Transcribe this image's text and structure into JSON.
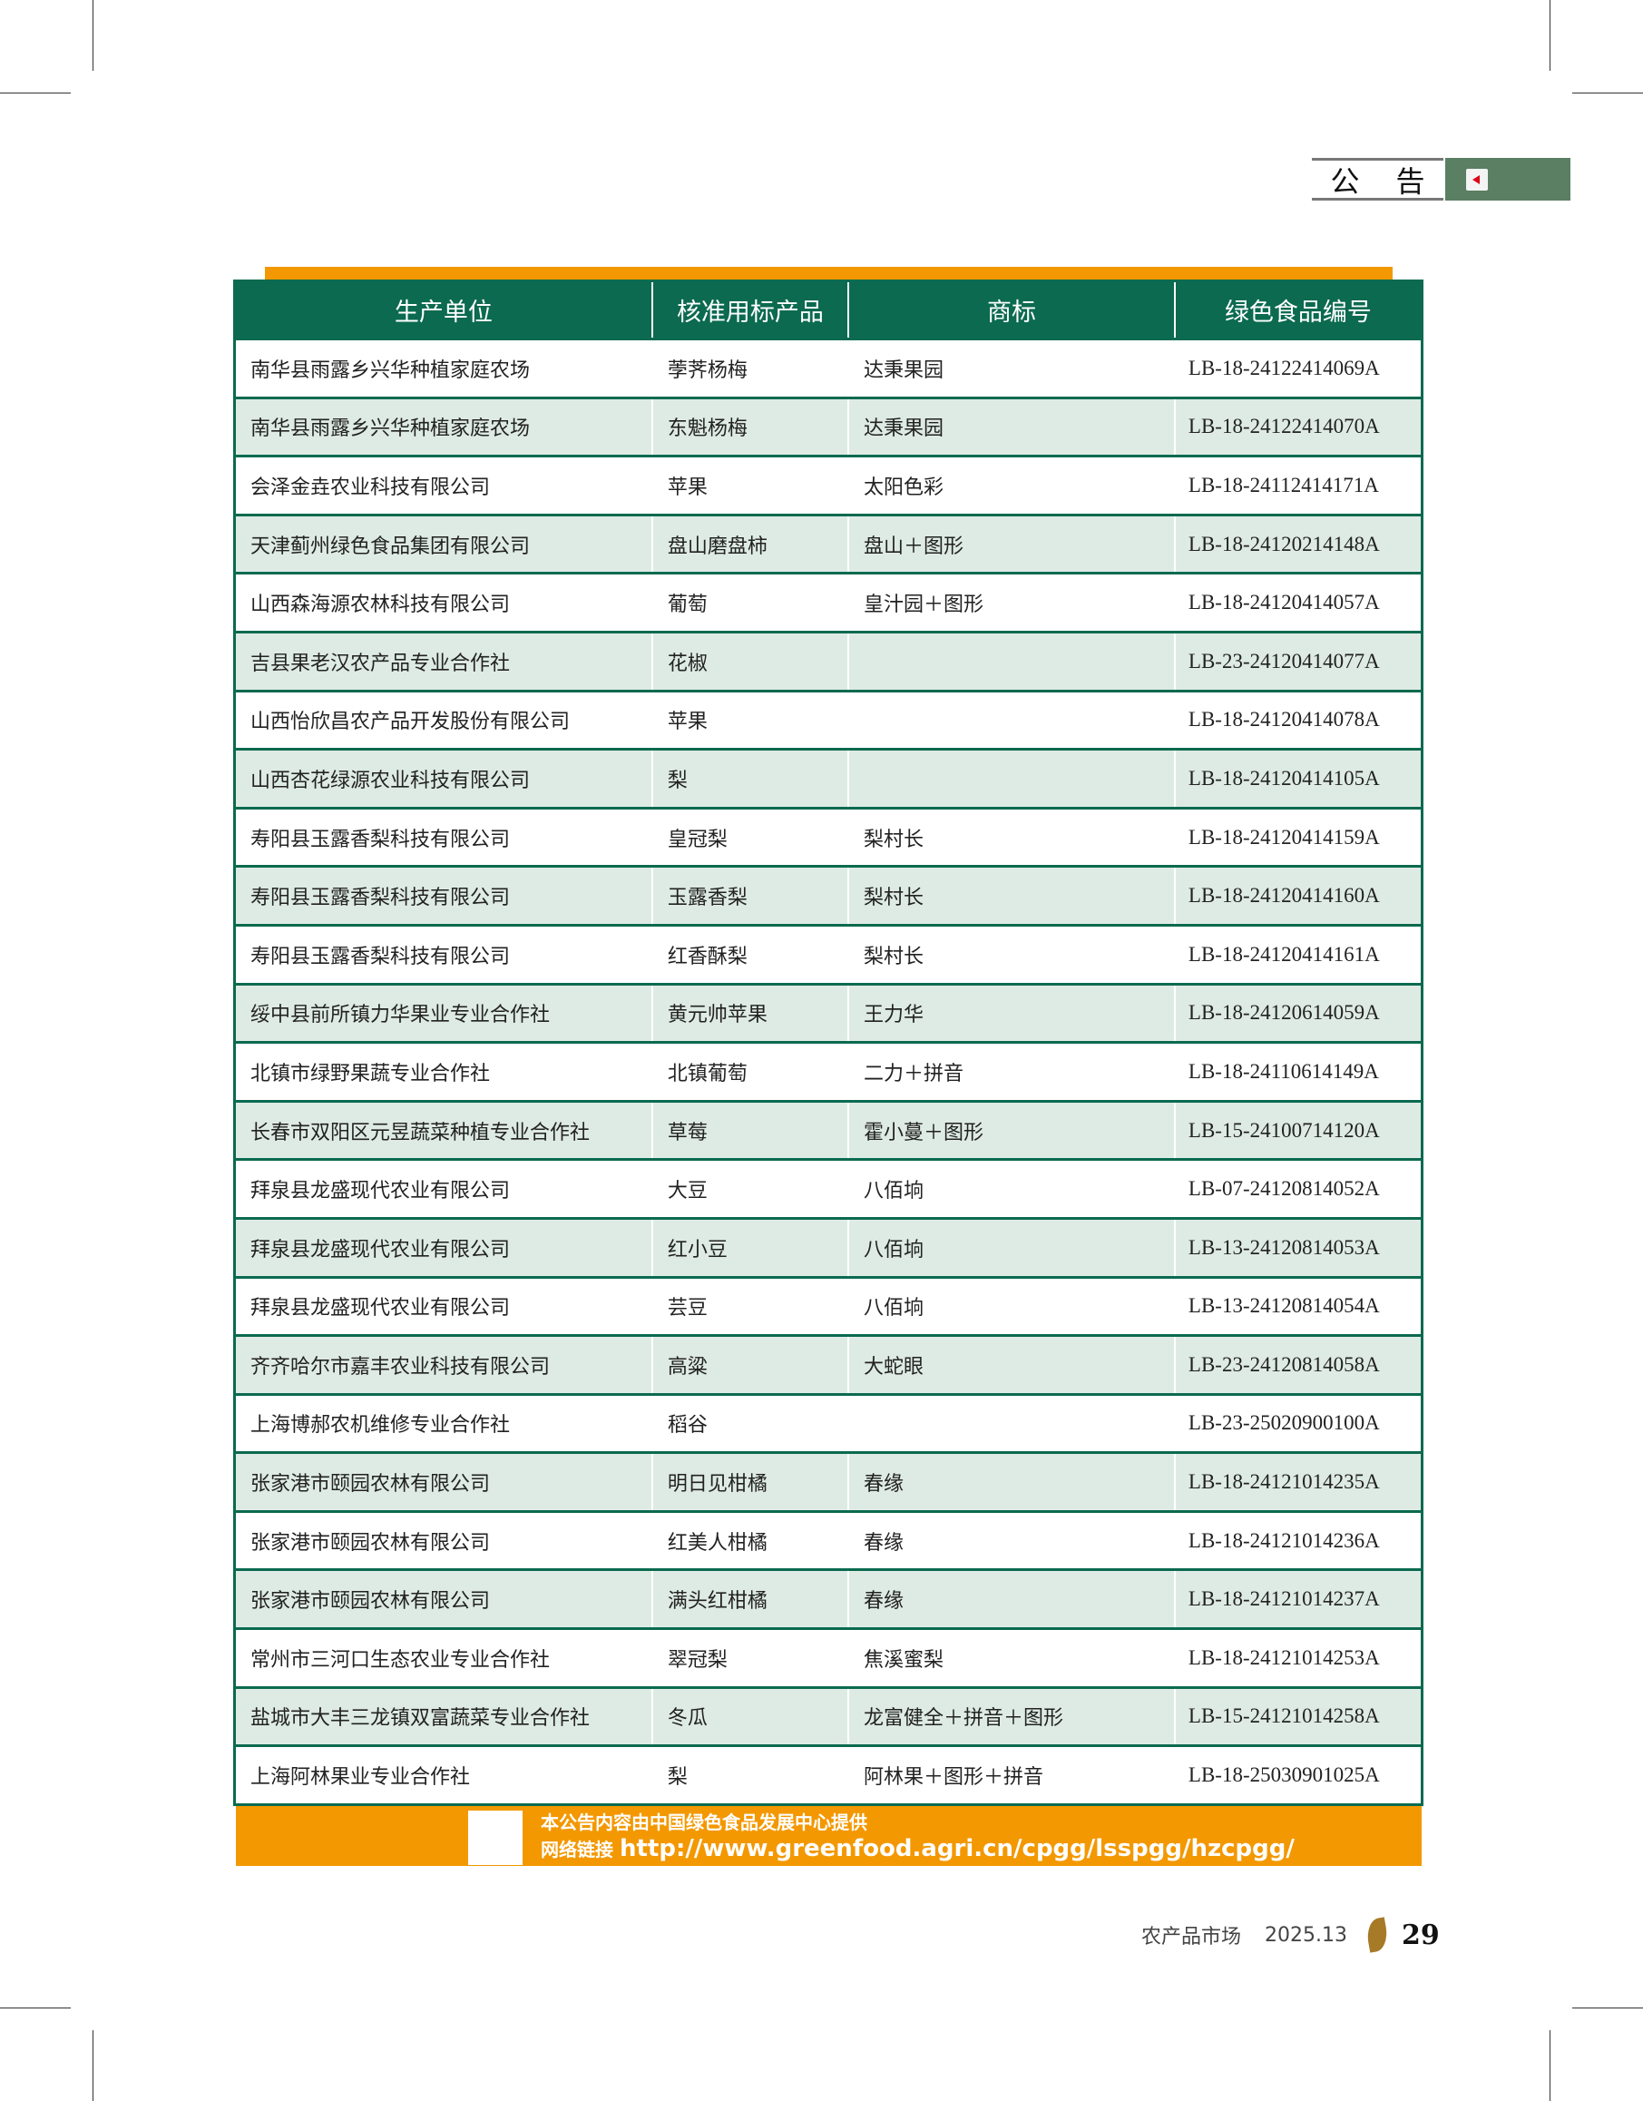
{
  "section_tab": {
    "chars": [
      "公",
      "告"
    ]
  },
  "table": {
    "headers": [
      "生产单位",
      "核准用标产品",
      "商标",
      "绿色食品编号"
    ],
    "rows": [
      [
        "南华县雨露乡兴华种植家庭农场",
        "荸荠杨梅",
        "达秉果园",
        "LB-18-24122414069A"
      ],
      [
        "南华县雨露乡兴华种植家庭农场",
        "东魁杨梅",
        "达秉果园",
        "LB-18-24122414070A"
      ],
      [
        "会泽金垚农业科技有限公司",
        "苹果",
        "太阳色彩",
        "LB-18-24112414171A"
      ],
      [
        "天津蓟州绿色食品集团有限公司",
        "盘山磨盘柿",
        "盘山＋图形",
        "LB-18-24120214148A"
      ],
      [
        "山西森海源农林科技有限公司",
        "葡萄",
        "皇汁园＋图形",
        "LB-18-24120414057A"
      ],
      [
        "吉县果老汉农产品专业合作社",
        "花椒",
        "",
        "LB-23-24120414077A"
      ],
      [
        "山西怡欣昌农产品开发股份有限公司",
        "苹果",
        "",
        "LB-18-24120414078A"
      ],
      [
        "山西杏花绿源农业科技有限公司",
        "梨",
        "",
        "LB-18-24120414105A"
      ],
      [
        "寿阳县玉露香梨科技有限公司",
        "皇冠梨",
        "梨村长",
        "LB-18-24120414159A"
      ],
      [
        "寿阳县玉露香梨科技有限公司",
        "玉露香梨",
        "梨村长",
        "LB-18-24120414160A"
      ],
      [
        "寿阳县玉露香梨科技有限公司",
        "红香酥梨",
        "梨村长",
        "LB-18-24120414161A"
      ],
      [
        "绥中县前所镇力华果业专业合作社",
        "黄元帅苹果",
        "王力华",
        "LB-18-24120614059A"
      ],
      [
        "北镇市绿野果蔬专业合作社",
        "北镇葡萄",
        "二力＋拼音",
        "LB-18-24110614149A"
      ],
      [
        "长春市双阳区元昱蔬菜种植专业合作社",
        "草莓",
        "霍小蔓＋图形",
        "LB-15-24100714120A"
      ],
      [
        "拜泉县龙盛现代农业有限公司",
        "大豆",
        "八佰垧",
        "LB-07-24120814052A"
      ],
      [
        "拜泉县龙盛现代农业有限公司",
        "红小豆",
        "八佰垧",
        "LB-13-24120814053A"
      ],
      [
        "拜泉县龙盛现代农业有限公司",
        "芸豆",
        "八佰垧",
        "LB-13-24120814054A"
      ],
      [
        "齐齐哈尔市嘉丰农业科技有限公司",
        "高粱",
        "大蛇眼",
        "LB-23-24120814058A"
      ],
      [
        "上海博郝农机维修专业合作社",
        "稻谷",
        "",
        "LB-23-25020900100A"
      ],
      [
        "张家港市颐园农林有限公司",
        "明日见柑橘",
        "春缘",
        "LB-18-24121014235A"
      ],
      [
        "张家港市颐园农林有限公司",
        "红美人柑橘",
        "春缘",
        "LB-18-24121014236A"
      ],
      [
        "张家港市颐园农林有限公司",
        "满头红柑橘",
        "春缘",
        "LB-18-24121014237A"
      ],
      [
        "常州市三河口生态农业专业合作社",
        "翠冠梨",
        "焦溪蜜梨",
        "LB-18-24121014253A"
      ],
      [
        "盐城市大丰三龙镇双富蔬菜专业合作社",
        "冬瓜",
        "龙富健全＋拼音＋图形",
        "LB-15-24121014258A"
      ],
      [
        "上海阿林果业专业合作社",
        "梨",
        "阿林果＋图形＋拼音",
        "LB-18-25030901025A"
      ]
    ]
  },
  "notice": {
    "line1": "本公告内容由中国绿色食品发展中心提供",
    "link_label": "网络链接",
    "url": "http://www.greenfood.agri.cn/cpgg/lsspgg/hzcpgg/"
  },
  "footer": {
    "magazine": "农产品市场",
    "issue": "2025.13",
    "page": "29"
  },
  "colors": {
    "green": "#0b6a4f",
    "orange": "#f39800",
    "row_alt": "#deebe4",
    "tab_green": "#5a7f63"
  }
}
